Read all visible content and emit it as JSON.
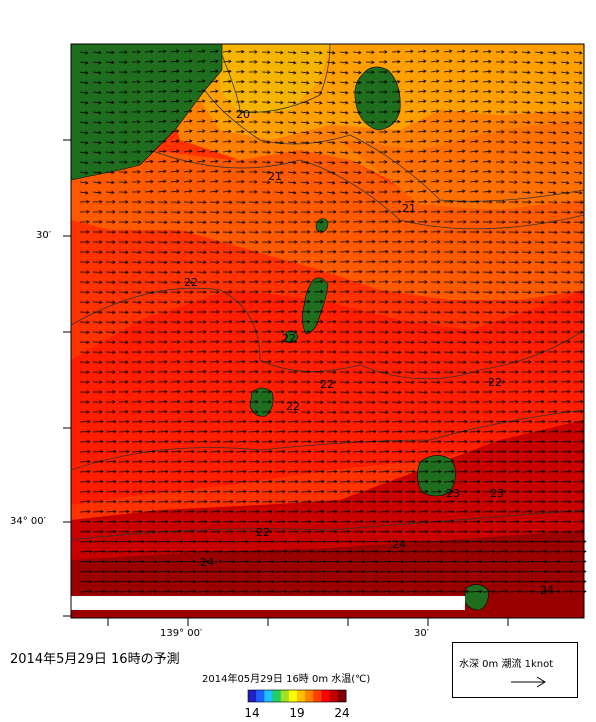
{
  "chart_data": {
    "type": "heatmap",
    "title": "2014年05月29日 16時 0m 水温(℃)",
    "variable": "水温",
    "unit": "℃",
    "depth": "0m",
    "contour_labels": [
      "20",
      "21",
      "21",
      "22",
      "22",
      "22",
      "22",
      "22",
      "22",
      "23",
      "23",
      "24",
      "24",
      "24"
    ],
    "colorbar": {
      "min": 14,
      "max": 24,
      "ticks": [
        "14",
        "19",
        "24"
      ],
      "colors": [
        "#2020c0",
        "#2060ff",
        "#20c0ff",
        "#20d060",
        "#a0e020",
        "#ffff00",
        "#ffc000",
        "#ff8000",
        "#ff4000",
        "#ff0000",
        "#c00000",
        "#800000"
      ]
    },
    "lon_ticks": [
      "139° 00′",
      "30′"
    ],
    "lat_ticks": [
      "30′",
      "34° 00′"
    ],
    "current_legend": {
      "text": "水深 0m 潮流 1knot",
      "arrow": "→"
    }
  },
  "forecast_label": "2014年5月29日 16時の予測",
  "land_color": "#1e6e1e",
  "sea_colors": {
    "cool": "#f5a800",
    "mid": "#ff7a10",
    "warm": "#ff2800",
    "hot": "#9a0000"
  }
}
